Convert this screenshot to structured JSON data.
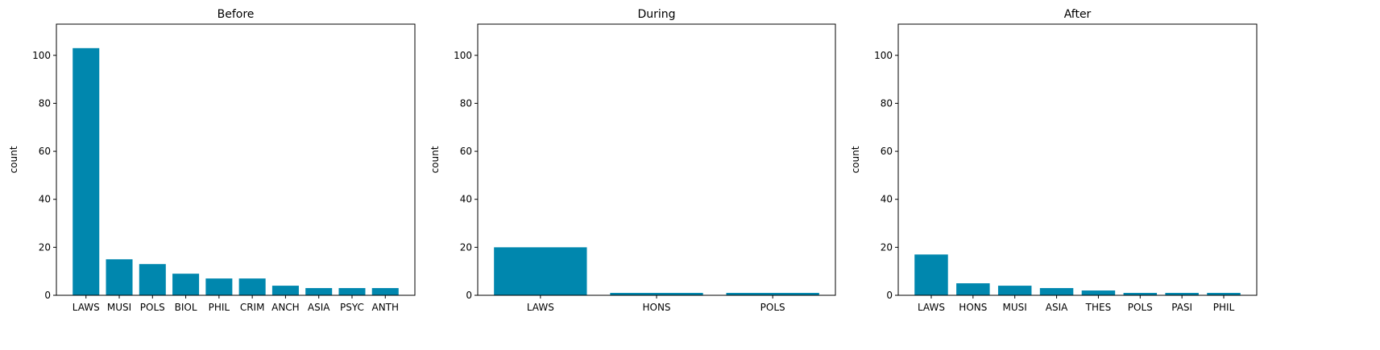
{
  "chart_data": [
    {
      "type": "bar",
      "title": "Before",
      "xlabel": "",
      "ylabel": "count",
      "ylim": [
        0,
        113
      ],
      "yticks": [
        0,
        20,
        40,
        60,
        80,
        100
      ],
      "categories": [
        "LAWS",
        "MUSI",
        "POLS",
        "BIOL",
        "PHIL",
        "CRIM",
        "ANCH",
        "ASIA",
        "PSYC",
        "ANTH"
      ],
      "values": [
        103,
        15,
        13,
        9,
        7,
        7,
        4,
        3,
        3,
        3
      ],
      "bar_color": "#0087ae",
      "grid": false
    },
    {
      "type": "bar",
      "title": "During",
      "xlabel": "",
      "ylabel": "count",
      "ylim": [
        0,
        113
      ],
      "yticks": [
        0,
        20,
        40,
        60,
        80,
        100
      ],
      "categories": [
        "LAWS",
        "HONS",
        "POLS"
      ],
      "values": [
        20,
        1,
        1
      ],
      "bar_color": "#0087ae",
      "grid": false
    },
    {
      "type": "bar",
      "title": "After",
      "xlabel": "",
      "ylabel": "count",
      "ylim": [
        0,
        113
      ],
      "yticks": [
        0,
        20,
        40,
        60,
        80,
        100
      ],
      "categories": [
        "LAWS",
        "HONS",
        "MUSI",
        "ASIA",
        "THES",
        "POLS",
        "PASI",
        "PHIL"
      ],
      "values": [
        17,
        5,
        4,
        3,
        2,
        1,
        1,
        1
      ],
      "bar_color": "#0087ae",
      "grid": false
    }
  ]
}
